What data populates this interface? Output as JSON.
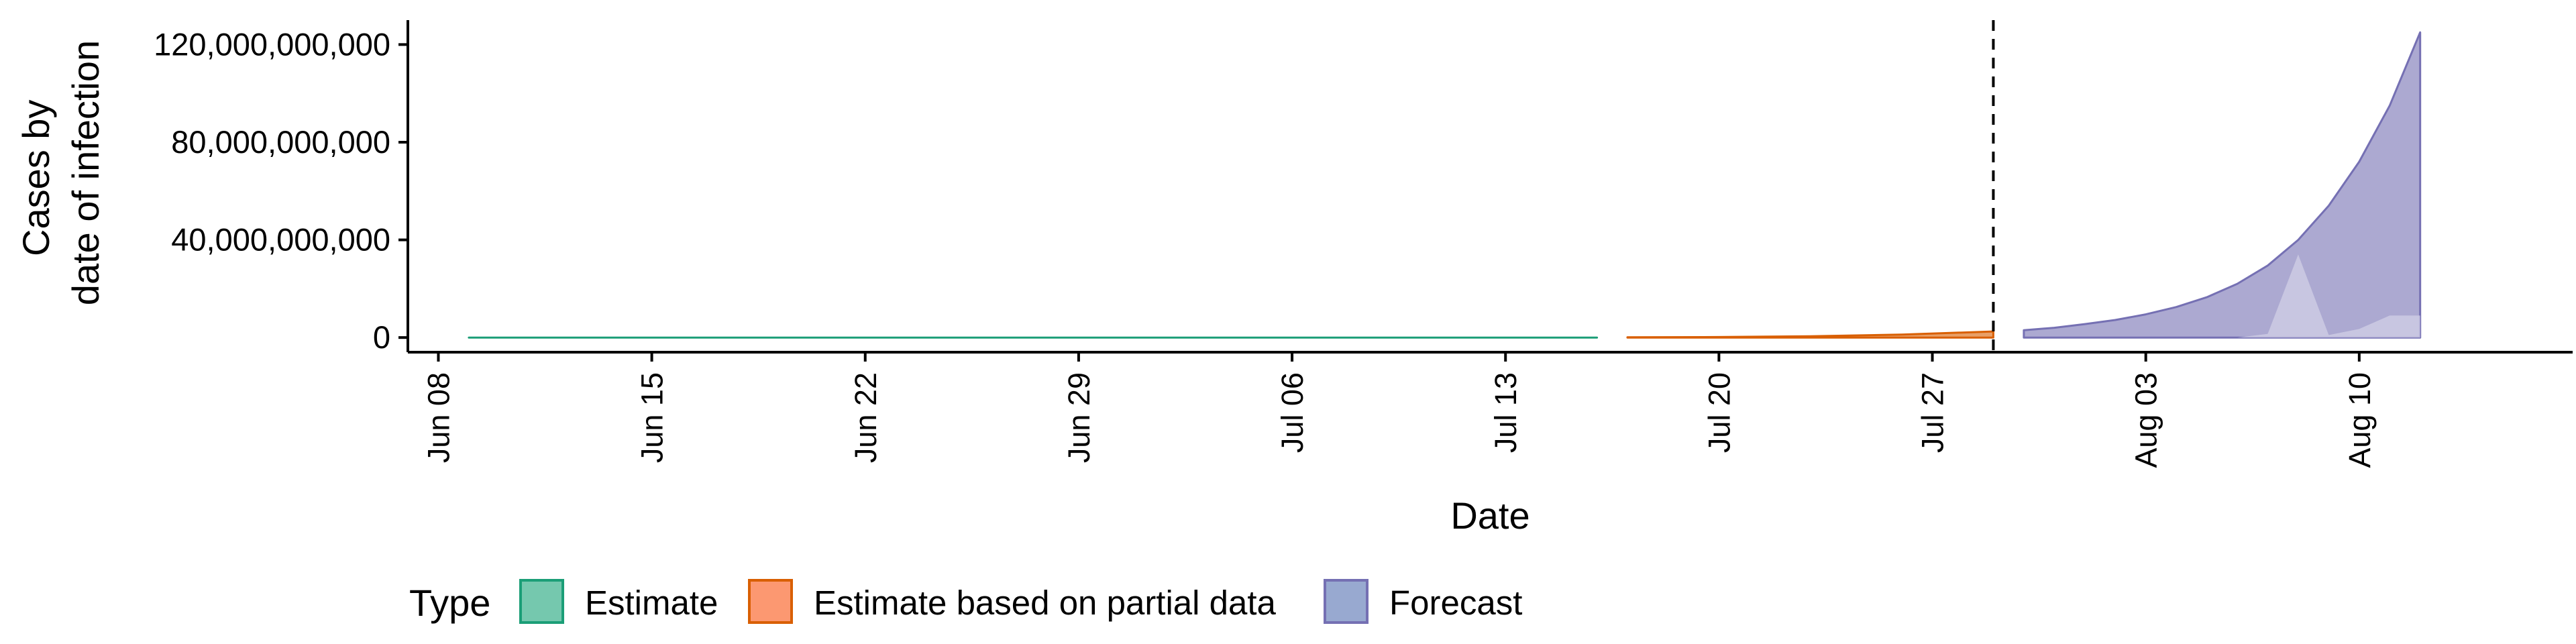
{
  "chart_data": {
    "type": "area",
    "title": "",
    "xlabel": "Date",
    "ylabel_lines": [
      "Cases by",
      "date of infection"
    ],
    "x_range": [
      "2020-06-07",
      "2020-08-17"
    ],
    "ylim": [
      -6000000000,
      130000000000
    ],
    "y_ticks": [
      {
        "value": 0,
        "label": "0"
      },
      {
        "value": 40000000000,
        "label": "40,000,000,000"
      },
      {
        "value": 80000000000,
        "label": "80,000,000,000"
      },
      {
        "value": 120000000000,
        "label": "120,000,000,000"
      }
    ],
    "x_ticks": [
      {
        "date": "2020-06-08",
        "label": "Jun 08"
      },
      {
        "date": "2020-06-15",
        "label": "Jun 15"
      },
      {
        "date": "2020-06-22",
        "label": "Jun 22"
      },
      {
        "date": "2020-06-29",
        "label": "Jun 29"
      },
      {
        "date": "2020-07-06",
        "label": "Jul 06"
      },
      {
        "date": "2020-07-13",
        "label": "Jul 13"
      },
      {
        "date": "2020-07-20",
        "label": "Jul 20"
      },
      {
        "date": "2020-07-27",
        "label": "Jul 27"
      },
      {
        "date": "2020-08-03",
        "label": "Aug 03"
      },
      {
        "date": "2020-08-10",
        "label": "Aug 10"
      }
    ],
    "vline_date": "2020-07-29",
    "grid": false,
    "legend": {
      "position": "bottom",
      "title": "Type",
      "entries": [
        {
          "label": "Estimate",
          "fill": "#66C2A5",
          "stroke": "#1B9E77"
        },
        {
          "label": "Estimate based on partial data",
          "fill": "#FC8D62",
          "stroke": "#D95F02"
        },
        {
          "label": "Forecast",
          "fill": "#8DA0CB",
          "stroke": "#7570B3"
        }
      ]
    },
    "series": [
      {
        "type": "Estimate",
        "color": "#1B9E77",
        "x": [
          "2020-06-09",
          "2020-07-16"
        ],
        "lower": [
          0,
          0
        ],
        "upper": [
          0,
          0
        ]
      },
      {
        "type": "Estimate based on partial data",
        "color": "#D95F02",
        "x": [
          "2020-07-17",
          "2020-07-20",
          "2020-07-23",
          "2020-07-26",
          "2020-07-29"
        ],
        "lower": [
          0,
          0,
          0,
          0,
          0
        ],
        "upper": [
          100000000,
          200000000,
          500000000,
          1200000000,
          2500000000
        ]
      },
      {
        "type": "Forecast",
        "color": "#7570B3",
        "x": [
          "2020-07-30",
          "2020-07-31",
          "2020-08-01",
          "2020-08-02",
          "2020-08-03",
          "2020-08-04",
          "2020-08-05",
          "2020-08-06",
          "2020-08-07",
          "2020-08-08",
          "2020-08-09",
          "2020-08-10",
          "2020-08-11",
          "2020-08-12"
        ],
        "lower": [
          0,
          0,
          0,
          0,
          0,
          0,
          0,
          0,
          0,
          0,
          0,
          0,
          0,
          0
        ],
        "upper": [
          3000000000,
          4000000000,
          5500000000,
          7200000000,
          9500000000,
          12500000000,
          16500000000,
          22000000000,
          29500000000,
          40000000000,
          54000000000,
          72000000000,
          95000000000,
          125000000000
        ],
        "inner_lower": [
          0,
          0,
          0,
          0,
          0,
          0,
          0,
          0,
          0,
          0,
          0,
          0,
          0,
          0
        ],
        "inner_upper": [
          0,
          0,
          0,
          0,
          0,
          0,
          0,
          0,
          1500000000,
          34000000000,
          1000000000,
          3500000000,
          9000000000,
          9000000000
        ]
      }
    ]
  }
}
